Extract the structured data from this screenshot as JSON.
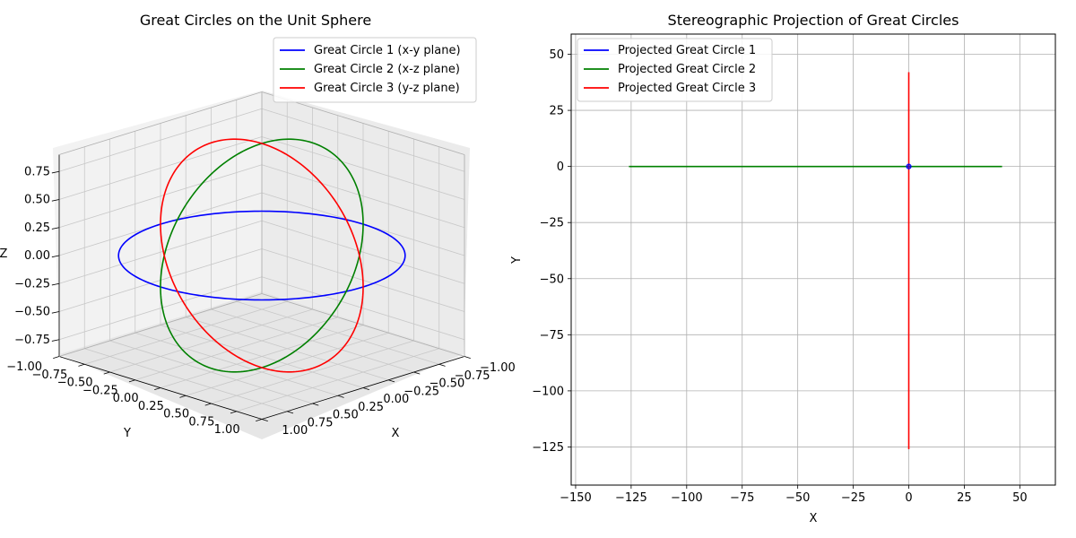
{
  "chart_data": [
    {
      "type": "line",
      "projection": "3d",
      "title": "Great Circles on the Unit Sphere",
      "xlabel": "X",
      "ylabel": "Y",
      "zlabel": "Z",
      "xlim": [
        -1.0,
        1.0
      ],
      "ylim": [
        -1.0,
        1.0
      ],
      "zlim": [
        -0.9,
        0.9
      ],
      "x_ticks": [
        "−1.00",
        "−0.75",
        "−0.50",
        "−0.25",
        "0.00",
        "0.25",
        "0.50",
        "0.75",
        "1.00"
      ],
      "y_ticks": [
        "−1.00",
        "−0.75",
        "−0.50",
        "−0.25",
        "0.00",
        "0.25",
        "0.50",
        "0.75",
        "1.00"
      ],
      "z_ticks": [
        "−0.75",
        "−0.50",
        "−0.25",
        "0.00",
        "0.25",
        "0.50",
        "0.75"
      ],
      "grid": true,
      "legend": "upper right",
      "series": [
        {
          "name": "Great Circle 1 (x-y plane)",
          "color": "#0000ff",
          "plane": "x-y",
          "equation": "x = cos t, y = sin t, z = 0"
        },
        {
          "name": "Great Circle 2 (x-z plane)",
          "color": "#008000",
          "plane": "x-z",
          "equation": "x = cos t, y = 0, z = sin t"
        },
        {
          "name": "Great Circle 3 (y-z plane)",
          "color": "#ff0000",
          "plane": "y-z",
          "equation": "x = 0, y = cos t, z = sin t"
        }
      ]
    },
    {
      "type": "line",
      "title": "Stereographic Projection of Great Circles",
      "xlabel": "X",
      "ylabel": "Y",
      "xlim": [
        -152,
        66
      ],
      "ylim": [
        -142,
        59
      ],
      "x_ticks": [
        -150,
        -125,
        -100,
        -75,
        -50,
        -25,
        0,
        25,
        50
      ],
      "y_ticks": [
        -125,
        -100,
        -75,
        -50,
        -25,
        0,
        25,
        50
      ],
      "x_tick_labels": [
        "−150",
        "−125",
        "−100",
        "−75",
        "−50",
        "−25",
        "0",
        "25",
        "50"
      ],
      "y_tick_labels": [
        "−125",
        "−100",
        "−75",
        "−50",
        "−25",
        "0",
        "25",
        "50"
      ],
      "grid": true,
      "legend": "upper left",
      "series": [
        {
          "name": "Projected Great Circle 1",
          "color": "#0000ff",
          "points": [
            [
              0,
              0
            ]
          ]
        },
        {
          "name": "Projected Great Circle 2",
          "color": "#008000",
          "points": [
            [
              -126,
              0
            ],
            [
              42,
              0
            ]
          ]
        },
        {
          "name": "Projected Great Circle 3",
          "color": "#ff0000",
          "points": [
            [
              0,
              -126
            ],
            [
              0,
              42
            ]
          ]
        }
      ]
    }
  ]
}
